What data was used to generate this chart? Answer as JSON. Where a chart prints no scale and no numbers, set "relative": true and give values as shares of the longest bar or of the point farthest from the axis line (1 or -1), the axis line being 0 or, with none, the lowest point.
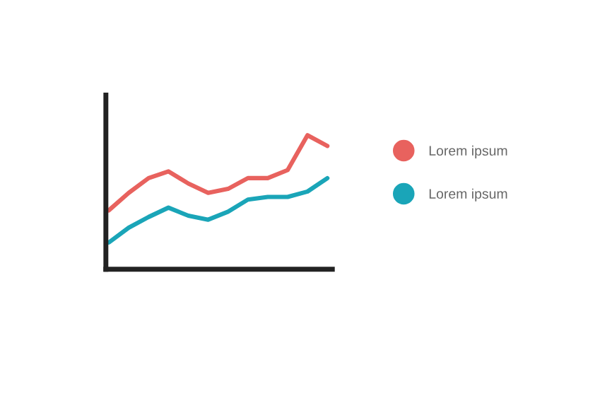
{
  "chart_data": {
    "type": "line",
    "relative": true,
    "categories": [
      null,
      null,
      null,
      null,
      null,
      null,
      null,
      null,
      null,
      null,
      null,
      null
    ],
    "series": [
      {
        "name": "Lorem ipsum",
        "color": "#e8625e",
        "values": [
          0.44,
          0.57,
          0.68,
          0.73,
          0.64,
          0.57,
          0.6,
          0.68,
          0.68,
          0.74,
          1,
          0.92
        ]
      },
      {
        "name": "Lorem ipsum",
        "color": "#1aa5b8",
        "values": [
          0.2,
          0.31,
          0.39,
          0.46,
          0.4,
          0.37,
          0.43,
          0.52,
          0.54,
          0.54,
          0.58,
          0.68
        ]
      }
    ],
    "legend": "right"
  }
}
